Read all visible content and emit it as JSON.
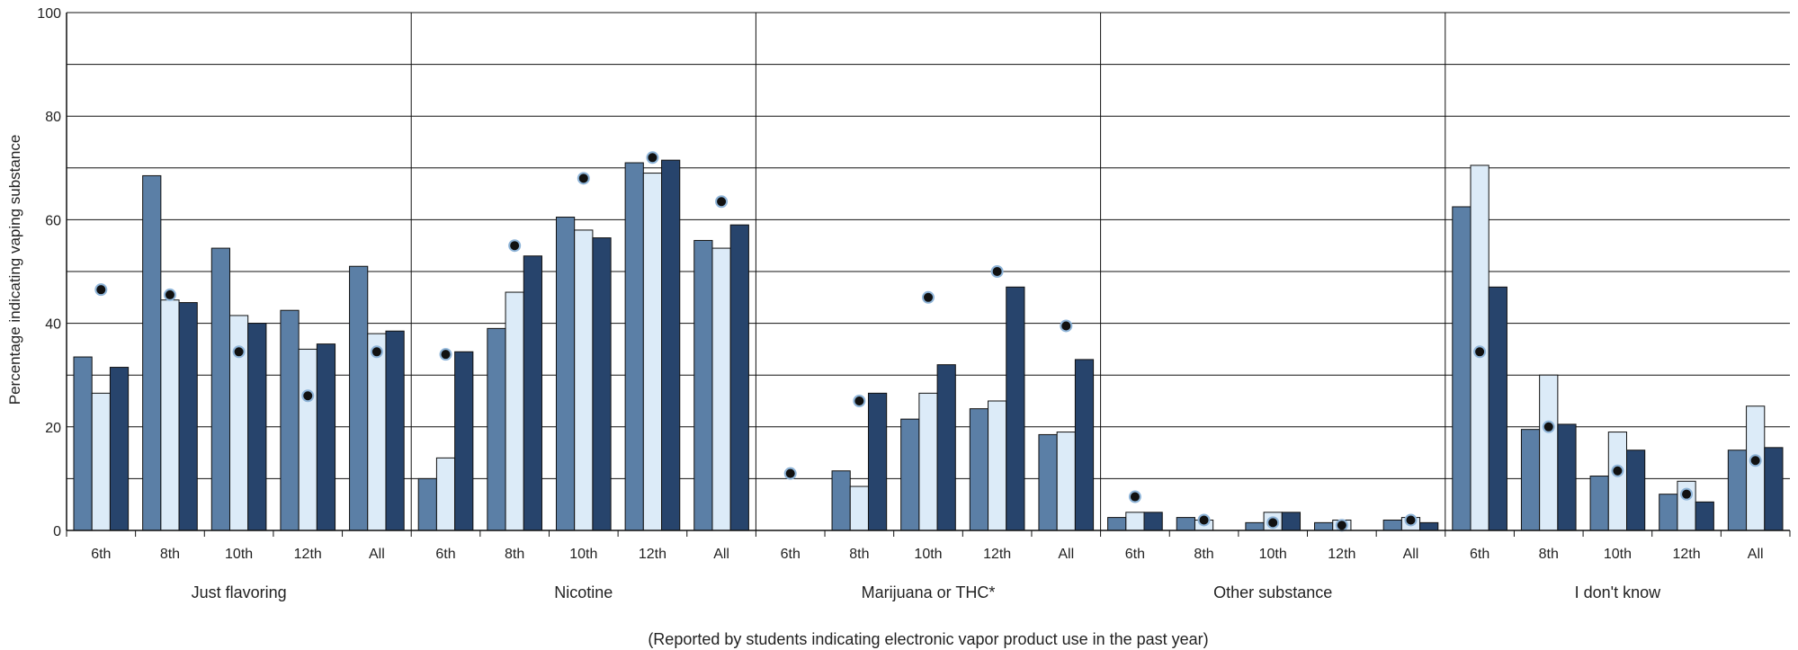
{
  "chart_data": {
    "type": "bar",
    "xlabel": "",
    "ylabel": "Percentage indicating vaping substance",
    "caption": "(Reported by students indicating electronic vapor product use in the past year)",
    "ylim": [
      0,
      100
    ],
    "yticks": [
      0,
      20,
      40,
      60,
      80,
      100
    ],
    "grid": true,
    "groups": [
      {
        "label": "Just flavoring",
        "categories": [
          "6th",
          "8th",
          "10th",
          "12th",
          "All"
        ],
        "series": [
          {
            "values": [
              33.5,
              68.5,
              54.5,
              42.5,
              51
            ]
          },
          {
            "values": [
              26.5,
              44.5,
              41.5,
              35,
              38
            ]
          },
          {
            "values": [
              31.5,
              44,
              40,
              36,
              38.5
            ]
          }
        ],
        "points": [
          46.5,
          45.5,
          34.5,
          26,
          34.5
        ]
      },
      {
        "label": "Nicotine",
        "categories": [
          "6th",
          "8th",
          "10th",
          "12th",
          "All"
        ],
        "series": [
          {
            "values": [
              10,
              39,
              60.5,
              71,
              56
            ]
          },
          {
            "values": [
              14,
              46,
              58,
              69,
              54.5
            ]
          },
          {
            "values": [
              34.5,
              53,
              56.5,
              71.5,
              59
            ]
          }
        ],
        "points": [
          34,
          55,
          68,
          72,
          63.5
        ]
      },
      {
        "label": "Marijuana or THC*",
        "categories": [
          "6th",
          "8th",
          "10th",
          "12th",
          "All"
        ],
        "series": [
          {
            "values": [
              0,
              11.5,
              21.5,
              23.5,
              18.5
            ]
          },
          {
            "values": [
              0,
              8.5,
              26.5,
              25,
              19
            ]
          },
          {
            "values": [
              0,
              26.5,
              32,
              47,
              33
            ]
          }
        ],
        "points": [
          11,
          25,
          45,
          50,
          39.5
        ]
      },
      {
        "label": "Other substance",
        "categories": [
          "6th",
          "8th",
          "10th",
          "12th",
          "All"
        ],
        "series": [
          {
            "values": [
              2.5,
              2.5,
              1.5,
              1.5,
              2
            ]
          },
          {
            "values": [
              3.5,
              2,
              3.5,
              2,
              2.5
            ]
          },
          {
            "values": [
              3.5,
              0,
              3.5,
              0,
              1.5
            ]
          }
        ],
        "points": [
          6.5,
          2,
          1.5,
          1,
          2
        ]
      },
      {
        "label": "I don't know",
        "categories": [
          "6th",
          "8th",
          "10th",
          "12th",
          "All"
        ],
        "series": [
          {
            "values": [
              62.5,
              19.5,
              10.5,
              7,
              15.5
            ]
          },
          {
            "values": [
              70.5,
              30,
              19,
              9.5,
              24
            ]
          },
          {
            "values": [
              47,
              20.5,
              15.5,
              5.5,
              16
            ]
          }
        ],
        "points": [
          34.5,
          20,
          11.5,
          7,
          13.5
        ]
      }
    ]
  },
  "colors": {
    "series": [
      "#5b7fa6",
      "#dcebf8",
      "#27446c"
    ],
    "bar_stroke": "#111111",
    "point_fill": "#111111",
    "point_stroke": "#8eb4d8",
    "grid": "#111111"
  }
}
